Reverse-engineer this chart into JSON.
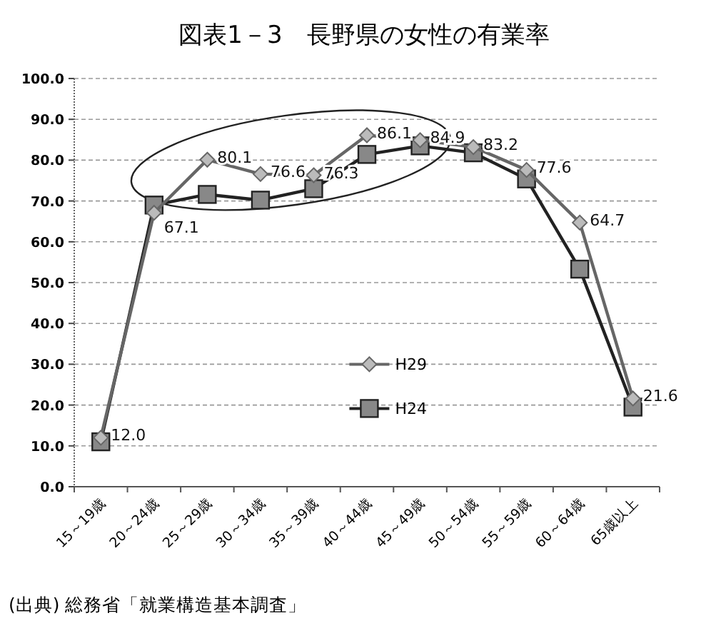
{
  "chart_data": {
    "type": "line",
    "title": "図表1－3　長野県の女性の有業率",
    "categories": [
      "15～19歳",
      "20～24歳",
      "25～29歳",
      "30～34歳",
      "35～39歳",
      "40～44歳",
      "45～49歳",
      "50～54歳",
      "55～59歳",
      "60～64歳",
      "65歳以上"
    ],
    "series": [
      {
        "name": "H29",
        "color": "#666666",
        "marker": "diamond",
        "values": [
          12.0,
          67.1,
          80.1,
          76.6,
          76.3,
          86.1,
          84.9,
          83.2,
          77.6,
          64.7,
          21.6
        ],
        "value_labels": [
          "12.0",
          "67.1",
          "80.1",
          "76.6",
          "76.3",
          "86.1",
          "84.9",
          "83.2",
          "77.6",
          "64.7",
          "21.6"
        ]
      },
      {
        "name": "H24",
        "color": "#222222",
        "marker": "square",
        "values": [
          11.0,
          69.0,
          71.6,
          70.2,
          73.0,
          81.4,
          83.5,
          81.8,
          75.4,
          53.3,
          19.5
        ]
      }
    ],
    "ylim": [
      0,
      100
    ],
    "yticks": [
      {
        "value": 0,
        "label": "0.0"
      },
      {
        "value": 10,
        "label": "10.0"
      },
      {
        "value": 20,
        "label": "20.0"
      },
      {
        "value": 30,
        "label": "30.0"
      },
      {
        "value": 40,
        "label": "40.0"
      },
      {
        "value": 50,
        "label": "50.0"
      },
      {
        "value": 60,
        "label": "60.0"
      },
      {
        "value": 70,
        "label": "70.0"
      },
      {
        "value": 80,
        "label": "80.0"
      },
      {
        "value": 90,
        "label": "90.0"
      },
      {
        "value": 100,
        "label": "100.0"
      }
    ],
    "grid": "y",
    "legend": "bottom",
    "annotations": [
      "(出典) 総務省「就業構造基本調査」"
    ]
  }
}
